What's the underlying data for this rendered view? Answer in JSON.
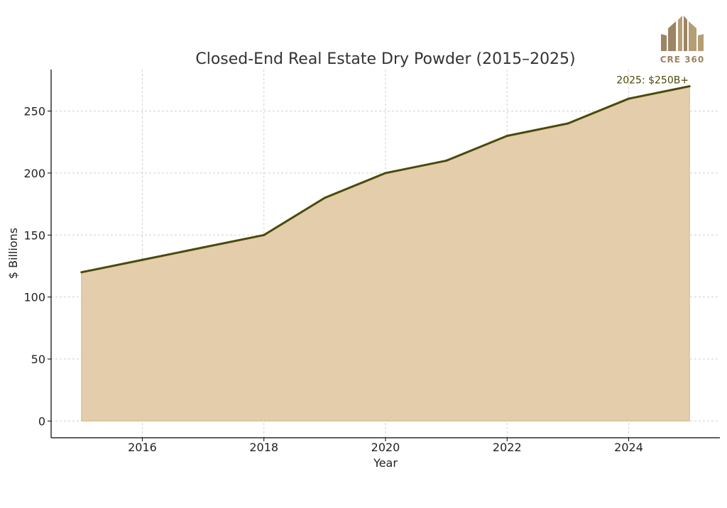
{
  "colors": {
    "line": "#4a4a0a",
    "fill": "#e3cdaa",
    "fill_edge": "#d2b48c",
    "grid": "#cfcfcf",
    "axis": "#000000",
    "logo_dark": "#9c8464",
    "logo_light": "#b59d74"
  },
  "logo": {
    "text": "CRE 360",
    "icon": "building-logo-icon"
  },
  "chart_data": {
    "type": "area",
    "title": "Closed-End Real Estate Dry Powder (2015–2025)",
    "xlabel": "Year",
    "ylabel": "$ Billions",
    "x": [
      2015,
      2016,
      2017,
      2018,
      2019,
      2020,
      2021,
      2022,
      2023,
      2024,
      2025
    ],
    "series": [
      {
        "values": [
          120,
          130,
          140,
          150,
          180,
          200,
          210,
          230,
          240,
          260,
          270
        ]
      }
    ],
    "xlim": [
      2014.5,
      2025.5
    ],
    "ylim": [
      -13.5,
      283.5
    ],
    "xticks": [
      "2016",
      "2018",
      "2020",
      "2022",
      "2024"
    ],
    "yticks": [
      "0",
      "50",
      "100",
      "150",
      "200",
      "250"
    ],
    "grid": true,
    "annotations": [
      {
        "x": 2025,
        "y": 270,
        "text": "2025: $250B+"
      }
    ]
  }
}
